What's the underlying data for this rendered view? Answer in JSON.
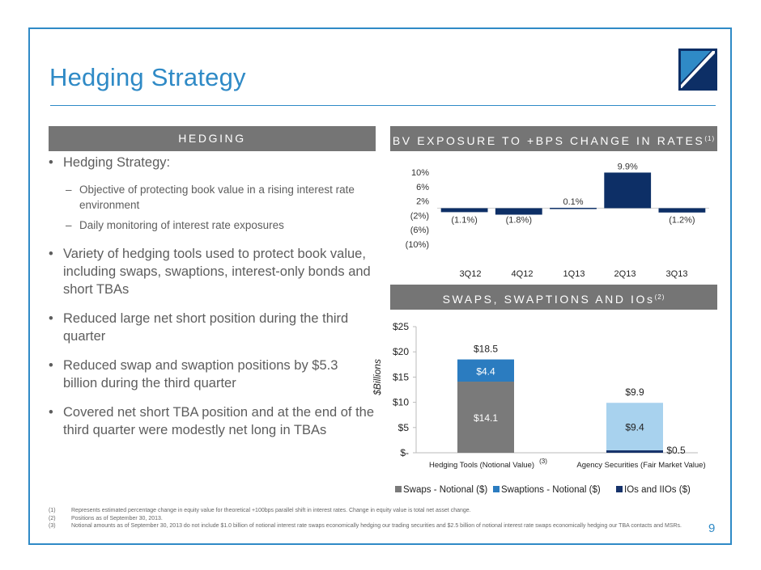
{
  "header": {
    "title": "Hedging Strategy"
  },
  "hedging_panel": {
    "heading": "HEDGING",
    "bullets": [
      {
        "text": "Hedging Strategy:"
      },
      {
        "text": "Variety of hedging tools used to protect book value, including swaps, swaptions, interest-only bonds and short TBAs"
      },
      {
        "text": "Reduced  large net short position during the third quarter"
      },
      {
        "text": "Reduced swap and swaption positions by $5.3 billion during the third quarter"
      },
      {
        "text": "Covered net short TBA position and at the end of the third quarter were modestly net long in TBAs"
      }
    ],
    "sub_bullets": [
      {
        "text": "Objective of protecting book value in a rising interest rate environment"
      },
      {
        "text": "Daily monitoring of interest rate exposures"
      }
    ]
  },
  "bv_panel": {
    "heading": "BV EXPOSURE TO +BPS CHANGE IN RATES",
    "heading_note": "(1)"
  },
  "swaps_panel": {
    "heading": "SWAPS, SWAPTIONS AND IOs",
    "heading_note": "(2)"
  },
  "colors": {
    "accent": "#2f8ac6",
    "navy": "#0d2f66",
    "gray_bar": "#757575",
    "swaps": "#7a7a7a",
    "swaptions": "#2b7cc0",
    "ios": "#17336b",
    "agency": "#a8d2ee"
  },
  "chart_data": [
    {
      "type": "bar",
      "title": "BV EXPOSURE TO +BPS CHANGE IN RATES",
      "categories": [
        "3Q12",
        "4Q12",
        "1Q13",
        "2Q13",
        "3Q13"
      ],
      "values": [
        -1.1,
        -1.8,
        0.1,
        9.9,
        -1.2
      ],
      "data_labels": [
        "(1.1%)",
        "(1.8%)",
        "0.1%",
        "9.9%",
        "(1.2%)"
      ],
      "ylim": [
        -10,
        10
      ],
      "yticks": [
        "10%",
        "6%",
        "2%",
        "(2%)",
        "(6%)",
        "(10%)"
      ],
      "ytick_values": [
        10,
        6,
        2,
        -2,
        -6,
        -10
      ],
      "xlabel": "",
      "ylabel": "",
      "grid": false
    },
    {
      "type": "bar",
      "stacked": true,
      "title": "SWAPS, SWAPTIONS AND IOs",
      "categories": [
        "Hedging Tools (Notional Value)",
        "Agency Securities (Fair Market Value)"
      ],
      "category_notes": [
        "(3)",
        ""
      ],
      "ylabel": "$Billions",
      "ylim": [
        0,
        25
      ],
      "yticks": [
        "$-",
        "$5",
        "$10",
        "$15",
        "$20",
        "$25"
      ],
      "ytick_values": [
        0,
        5,
        10,
        15,
        20,
        25
      ],
      "totals": [
        18.5,
        9.9
      ],
      "total_labels": [
        "$18.5",
        "$9.9"
      ],
      "series": [
        {
          "name": "Swaps - Notional ($)",
          "values": [
            14.1,
            0
          ],
          "labels": [
            "$14.1",
            ""
          ]
        },
        {
          "name": "Swaptions - Notional ($)",
          "values": [
            4.4,
            0
          ],
          "labels": [
            "$4.4",
            ""
          ]
        },
        {
          "name": "IOs and IIOs ($)",
          "values": [
            0,
            0.5
          ],
          "labels": [
            "",
            "$0.5"
          ]
        },
        {
          "name": "Agency Securities",
          "values": [
            0,
            9.4
          ],
          "labels": [
            "",
            "$9.4"
          ]
        }
      ],
      "legend": [
        "Swaps - Notional ($)",
        "Swaptions - Notional ($)",
        "IOs and IIOs ($)"
      ],
      "legend_position": "bottom"
    }
  ],
  "footnotes": [
    {
      "num": "(1)",
      "text": "Represents estimated percentage change in equity value for theoretical +100bps parallel shift in interest rates. Change in equity value is total net asset change."
    },
    {
      "num": "(2)",
      "text": "Positions as of September 30, 2013."
    },
    {
      "num": "(3)",
      "text": "Notional amounts as of September 30, 2013 do not include $1.0 billion of notional interest rate swaps economically hedging our trading securities and $2.5 billion of notional interest rate swaps economically hedging our TBA contacts and MSRs."
    }
  ],
  "page_number": "9"
}
